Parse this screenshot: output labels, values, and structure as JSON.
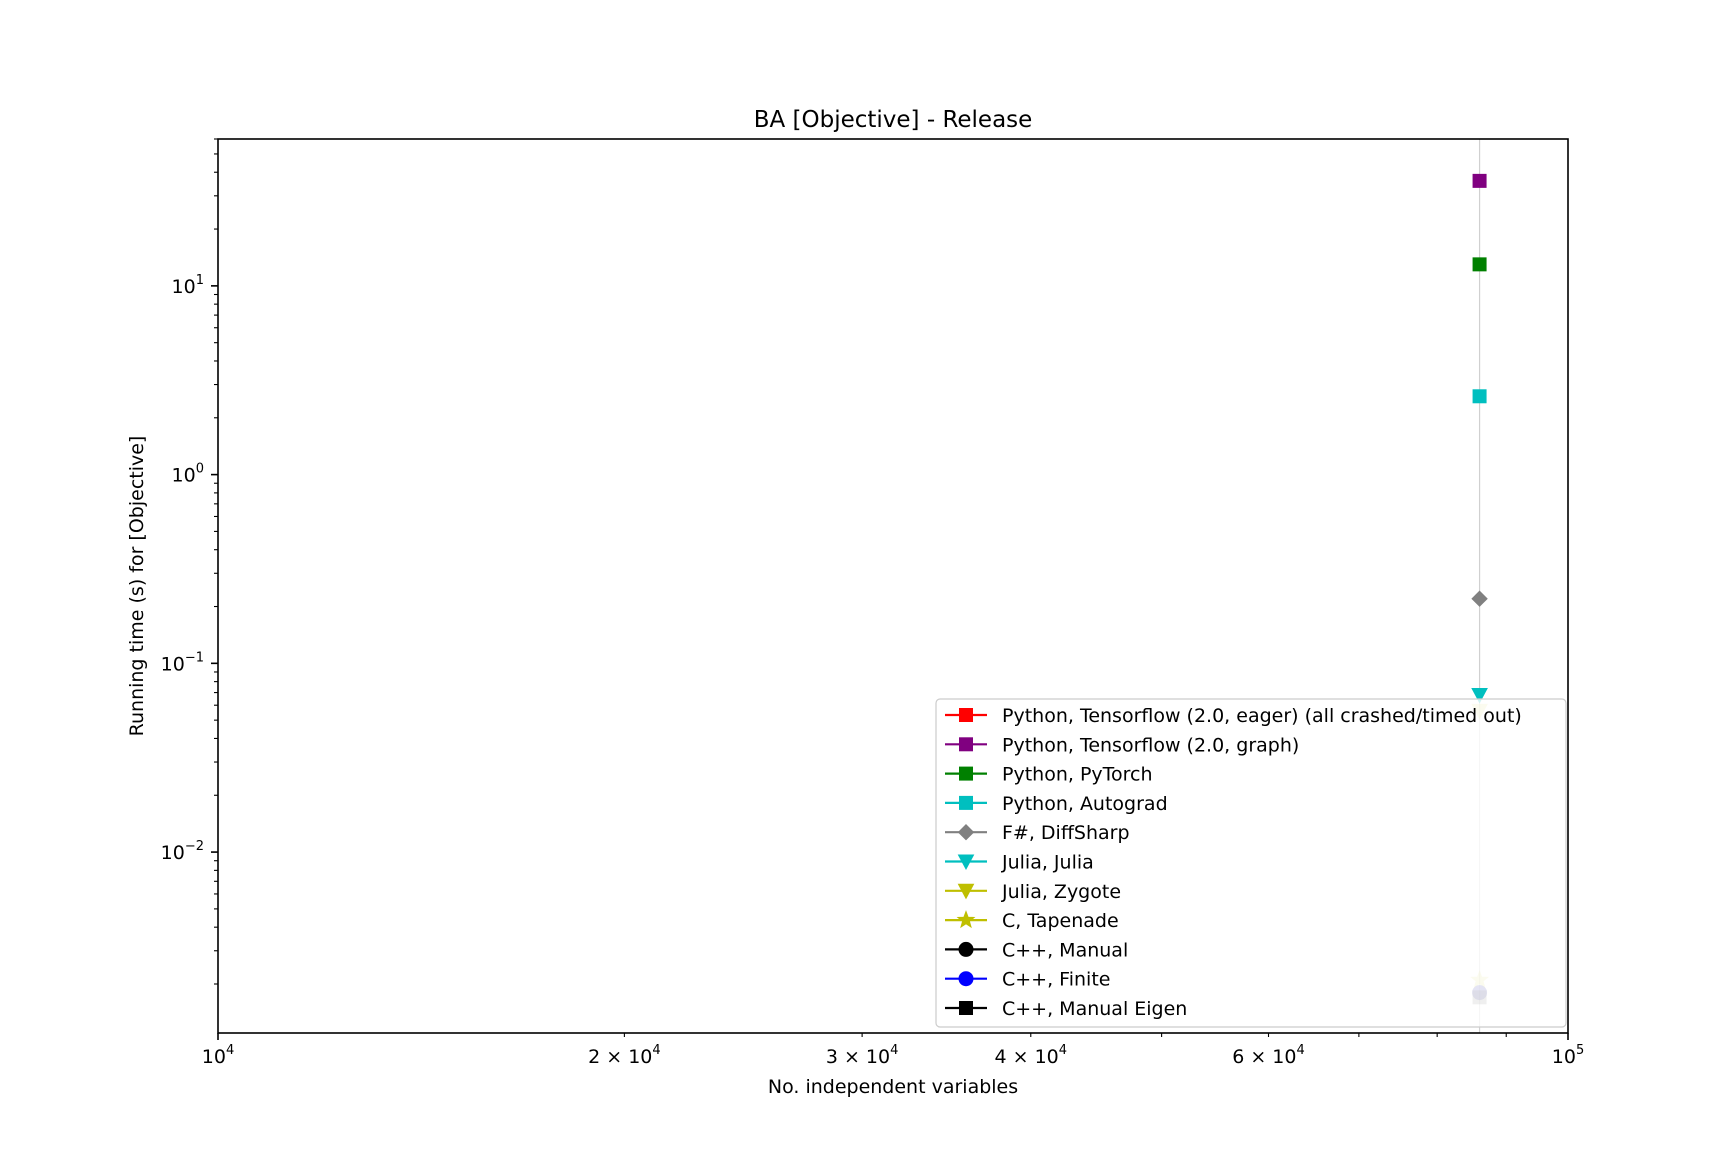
{
  "chart_data": {
    "type": "scatter",
    "title": "BA [Objective] - Release",
    "xlabel": "No. independent variables",
    "ylabel": "Running time (s) for [Objective]",
    "xscale": "log",
    "yscale": "log",
    "xlim": [
      10000,
      100000
    ],
    "ylim": [
      0.0011,
      60
    ],
    "x_ticks": [
      {
        "value": 10000,
        "base": "10",
        "exp": "4"
      },
      {
        "value": 20000,
        "base": "2 × 10",
        "exp": "4"
      },
      {
        "value": 30000,
        "base": "3 × 10",
        "exp": "4"
      },
      {
        "value": 40000,
        "base": "4 × 10",
        "exp": "4"
      },
      {
        "value": 60000,
        "base": "6 × 10",
        "exp": "4"
      },
      {
        "value": 100000,
        "base": "10",
        "exp": "5"
      }
    ],
    "y_ticks": [
      {
        "value": 0.01,
        "base": "10",
        "exp": "−2"
      },
      {
        "value": 0.1,
        "base": "10",
        "exp": "−1"
      },
      {
        "value": 1,
        "base": "10",
        "exp": "0"
      },
      {
        "value": 10,
        "base": "10",
        "exp": "1"
      }
    ],
    "vline_x": 86000,
    "legend_position": "lower right",
    "series": [
      {
        "name": "Python, Tensorflow (2.0, eager) (all crashed/timed out)",
        "color": "#ff0000",
        "marker": "square",
        "points": []
      },
      {
        "name": "Python, Tensorflow (2.0, graph)",
        "color": "#800080",
        "marker": "square",
        "points": [
          {
            "x": 86000,
            "y": 36
          }
        ]
      },
      {
        "name": "Python, PyTorch",
        "color": "#008000",
        "marker": "square",
        "points": [
          {
            "x": 86000,
            "y": 13
          }
        ]
      },
      {
        "name": "Python, Autograd",
        "color": "#00bfbf",
        "marker": "square",
        "points": [
          {
            "x": 86000,
            "y": 2.6
          }
        ]
      },
      {
        "name": "F#, DiffSharp",
        "color": "#808080",
        "marker": "diamond",
        "points": [
          {
            "x": 86000,
            "y": 0.22
          }
        ]
      },
      {
        "name": "Julia, Julia",
        "color": "#00bfbf",
        "marker": "triangle-down",
        "points": [
          {
            "x": 86000,
            "y": 0.068
          }
        ]
      },
      {
        "name": "Julia, Zygote",
        "color": "#bfbf00",
        "marker": "triangle-down",
        "points": [
          {
            "x": 86000,
            "y": 0.056
          }
        ]
      },
      {
        "name": "C, Tapenade",
        "color": "#bfbf00",
        "marker": "star",
        "points": [
          {
            "x": 86000,
            "y": 0.0021
          }
        ]
      },
      {
        "name": "C++, Manual",
        "color": "#000000",
        "marker": "circle",
        "points": [
          {
            "x": 86000,
            "y": 0.0018
          }
        ]
      },
      {
        "name": "C++, Finite",
        "color": "#0000ff",
        "marker": "circle",
        "points": [
          {
            "x": 86000,
            "y": 0.0018
          }
        ]
      },
      {
        "name": "C++, Manual Eigen",
        "color": "#000000",
        "marker": "square",
        "points": [
          {
            "x": 86000,
            "y": 0.0017
          }
        ]
      }
    ]
  }
}
